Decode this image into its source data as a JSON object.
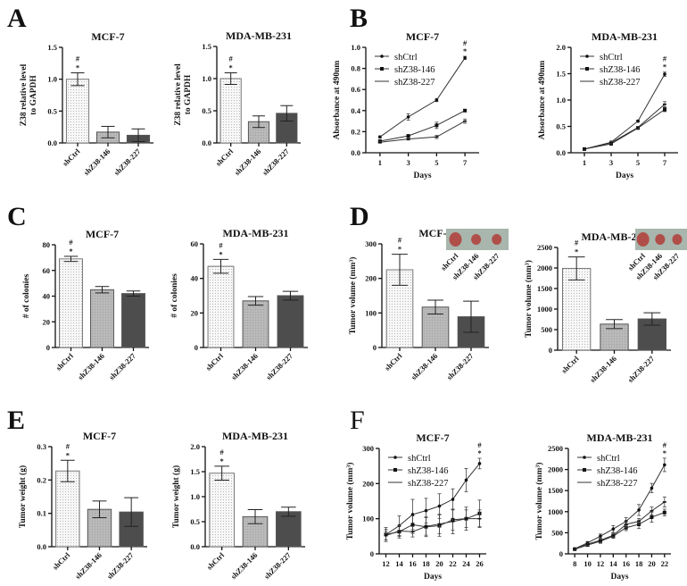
{
  "panel_letters": [
    "A",
    "B",
    "C",
    "D",
    "E",
    "F"
  ],
  "colors": {
    "shCtrl": "#f4f4f4",
    "shZ38-146": "#b9b9b9",
    "shZ38-227": "#4d4d4d",
    "axis": "#111111",
    "photo_bg": "#9fb0a6",
    "tumor": "#b4554e"
  },
  "chart_data": [
    {
      "panel": "A",
      "type": "bar",
      "title": "MCF-7",
      "ylabel": [
        "Z38 relative level",
        "to GAPDH"
      ],
      "categories": [
        "shCtrl",
        "shZ38-146",
        "shZ38-227"
      ],
      "values": [
        1.0,
        0.17,
        0.12
      ],
      "errors": [
        0.1,
        0.09,
        0.1
      ],
      "ylim": [
        0,
        1.5
      ],
      "yticks": [
        "0.0",
        "0.5",
        "1.0",
        "1.5"
      ],
      "yticks_values": [
        0,
        0.5,
        1.0,
        1.5
      ],
      "annotations": [
        "#",
        "*"
      ]
    },
    {
      "panel": "A",
      "type": "bar",
      "title": "MDA-MB-231",
      "ylabel": [
        "Z38 relative level",
        "to GAPDH"
      ],
      "categories": [
        "shCtrl",
        "shZ38-146",
        "shZ38-227"
      ],
      "values": [
        1.0,
        0.33,
        0.46
      ],
      "errors": [
        0.09,
        0.09,
        0.12
      ],
      "ylim": [
        0,
        1.5
      ],
      "yticks": [
        "0.0",
        "0.5",
        "1.0",
        "1.5"
      ],
      "yticks_values": [
        0,
        0.5,
        1.0,
        1.5
      ],
      "annotations": [
        "#",
        "*"
      ]
    },
    {
      "panel": "B",
      "type": "line",
      "title": "MCF-7",
      "ylabel": [
        "Absorbance at 490nm"
      ],
      "xlabel": "Days",
      "x": [
        1,
        3,
        5,
        7
      ],
      "xticks": [
        "1",
        "3",
        "5",
        "7"
      ],
      "ylim": [
        0,
        1.0
      ],
      "yticks": [
        "0.0",
        "0.2",
        "0.4",
        "0.6",
        "0.8",
        "1.0"
      ],
      "yticks_values": [
        0,
        0.2,
        0.4,
        0.6,
        0.8,
        1.0
      ],
      "legend": "top-left",
      "annotations": [
        "#",
        "*"
      ],
      "series": [
        {
          "name": "shCtrl",
          "values": [
            0.15,
            0.34,
            0.5,
            0.9
          ],
          "errors": [
            0.01,
            0.03,
            0.015,
            0.015
          ]
        },
        {
          "name": "shZ38-146",
          "values": [
            0.11,
            0.16,
            0.26,
            0.4
          ],
          "errors": [
            0.01,
            0.01,
            0.03,
            0.01
          ]
        },
        {
          "name": "shZ38-227",
          "values": [
            0.1,
            0.13,
            0.15,
            0.3
          ],
          "errors": [
            0.01,
            0.01,
            0.015,
            0.02
          ]
        }
      ]
    },
    {
      "panel": "B",
      "type": "line",
      "title": "MDA-MB-231",
      "ylabel": [
        "Absorbance at 490nm"
      ],
      "xlabel": "Days",
      "x": [
        1,
        3,
        5,
        7
      ],
      "xticks": [
        "1",
        "3",
        "5",
        "7"
      ],
      "ylim": [
        0,
        2.0
      ],
      "yticks": [
        "0.0",
        "0.5",
        "1.0",
        "1.5",
        "2.0"
      ],
      "yticks_values": [
        0,
        0.5,
        1.0,
        1.5,
        2.0
      ],
      "legend": "top-left",
      "annotations": [
        "#",
        "*"
      ],
      "series": [
        {
          "name": "shCtrl",
          "values": [
            0.07,
            0.2,
            0.6,
            1.49
          ],
          "errors": [
            0.01,
            0.02,
            0.02,
            0.04
          ]
        },
        {
          "name": "shZ38-146",
          "values": [
            0.07,
            0.17,
            0.47,
            0.82
          ],
          "errors": [
            0.01,
            0.02,
            0.02,
            0.04
          ]
        },
        {
          "name": "shZ38-227",
          "values": [
            0.07,
            0.19,
            0.48,
            0.92
          ],
          "errors": [
            0.01,
            0.02,
            0.02,
            0.05
          ]
        }
      ]
    },
    {
      "panel": "C",
      "type": "bar",
      "title": "MCF-7",
      "ylabel": [
        "# of colonies"
      ],
      "categories": [
        "shCtrl",
        "shZ38-146",
        "shZ38-227"
      ],
      "values": [
        69,
        45,
        42
      ],
      "errors": [
        2,
        2.5,
        2
      ],
      "ylim": [
        0,
        80
      ],
      "yticks": [
        "0",
        "20",
        "40",
        "60",
        "80"
      ],
      "yticks_values": [
        0,
        20,
        40,
        60,
        80
      ],
      "annotations": [
        "#",
        "*"
      ]
    },
    {
      "panel": "C",
      "type": "bar",
      "title": "MDA-MB-231",
      "ylabel": [
        "# of colonies"
      ],
      "categories": [
        "shCtrl",
        "shZ38-146",
        "shZ38-227"
      ],
      "values": [
        47,
        27,
        30
      ],
      "errors": [
        4,
        2.5,
        2.5
      ],
      "ylim": [
        0,
        60
      ],
      "yticks": [
        "0",
        "20",
        "40",
        "60"
      ],
      "yticks_values": [
        0,
        20,
        40,
        60
      ],
      "annotations": [
        "#",
        "*"
      ]
    },
    {
      "panel": "D",
      "type": "bar",
      "title": "MCF-7",
      "ylabel": [
        "Tumor volume (mm³)"
      ],
      "categories": [
        "shCtrl",
        "shZ38-146",
        "shZ38-227"
      ],
      "values": [
        225,
        117,
        89
      ],
      "errors": [
        45,
        20,
        45
      ],
      "ylim": [
        0,
        300
      ],
      "yticks": [
        "0",
        "100",
        "200",
        "300"
      ],
      "yticks_values": [
        0,
        100,
        200,
        300
      ],
      "annotations": [
        "#",
        "*"
      ],
      "inset_labels": [
        "shCtrl",
        "shZ38-146",
        "shZ38-227"
      ]
    },
    {
      "panel": "D",
      "type": "bar",
      "title": "MDA-MB-231",
      "ylabel": [
        "Tumor volume (mm³)"
      ],
      "categories": [
        "shCtrl",
        "shZ38-146",
        "shZ38-227"
      ],
      "values": [
        1990,
        635,
        760
      ],
      "errors": [
        280,
        110,
        150
      ],
      "ylim": [
        0,
        2500
      ],
      "yticks": [
        "0",
        "500",
        "1000",
        "1500",
        "2000",
        "2500"
      ],
      "yticks_values": [
        0,
        500,
        1000,
        1500,
        2000,
        2500
      ],
      "annotations": [
        "#",
        "*"
      ],
      "inset_labels": [
        "shCtrl",
        "shZ38-146",
        "shZ38-227"
      ]
    },
    {
      "panel": "E",
      "type": "bar",
      "title": "MCF-7",
      "ylabel": [
        "Tumor weight (g)"
      ],
      "categories": [
        "shCtrl",
        "shZ38-146",
        "shZ38-227"
      ],
      "values": [
        0.227,
        0.112,
        0.104
      ],
      "errors": [
        0.032,
        0.025,
        0.043
      ],
      "ylim": [
        0,
        0.3
      ],
      "yticks": [
        "0.0",
        "0.1",
        "0.2",
        "0.3"
      ],
      "yticks_values": [
        0,
        0.1,
        0.2,
        0.3
      ],
      "annotations": [
        "#",
        "*"
      ]
    },
    {
      "panel": "E",
      "type": "bar",
      "title": "MDA-MB-231",
      "ylabel": [
        "Tumor weight (g)"
      ],
      "categories": [
        "shCtrl",
        "shZ38-146",
        "shZ38-227"
      ],
      "values": [
        1.47,
        0.6,
        0.7
      ],
      "errors": [
        0.14,
        0.14,
        0.09
      ],
      "ylim": [
        0,
        2.0
      ],
      "yticks": [
        "0.0",
        "0.5",
        "1.0",
        "1.5",
        "2.0"
      ],
      "yticks_values": [
        0,
        0.5,
        1.0,
        1.5,
        2.0
      ],
      "annotations": [
        "#",
        "*"
      ]
    },
    {
      "panel": "F",
      "type": "line",
      "title": "MCF-7",
      "ylabel": [
        "Tumor volume (mm³)"
      ],
      "xlabel": "Days",
      "x": [
        12,
        14,
        16,
        18,
        20,
        22,
        24,
        26
      ],
      "xticks": [
        "12",
        "14",
        "16",
        "18",
        "20",
        "22",
        "24",
        "26"
      ],
      "ylim": [
        0,
        300
      ],
      "yticks": [
        "0",
        "100",
        "200",
        "300"
      ],
      "yticks_values": [
        0,
        100,
        200,
        300
      ],
      "legend": "top-left",
      "annotations": [
        "#",
        "*"
      ],
      "series": [
        {
          "name": "shCtrl",
          "values": [
            55,
            80,
            112,
            123,
            136,
            155,
            210,
            257
          ],
          "errors": [
            20,
            28,
            43,
            35,
            35,
            30,
            33,
            15
          ]
        },
        {
          "name": "shZ38-146",
          "values": [
            55,
            63,
            83,
            77,
            80,
            97,
            100,
            115
          ],
          "errors": [
            15,
            18,
            25,
            28,
            30,
            30,
            33,
            38
          ]
        },
        {
          "name": "shZ38-227",
          "values": [
            52,
            65,
            63,
            78,
            85,
            92,
            100,
            100
          ],
          "errors": [
            12,
            15,
            15,
            25,
            28,
            35,
            25,
            25
          ]
        }
      ]
    },
    {
      "panel": "F",
      "type": "line",
      "title": "MDA-MB-231",
      "ylabel": [
        "Tumor volume (mm³)"
      ],
      "xlabel": "Days",
      "x": [
        8,
        10,
        12,
        14,
        16,
        18,
        20,
        22
      ],
      "xticks": [
        "8",
        "10",
        "12",
        "14",
        "16",
        "18",
        "20",
        "22"
      ],
      "ylim": [
        0,
        2500
      ],
      "yticks": [
        "0",
        "500",
        "1000",
        "1500",
        "2000",
        "2500"
      ],
      "yticks_values": [
        0,
        500,
        1000,
        1500,
        2000,
        2500
      ],
      "legend": "top-left",
      "annotations": [
        "#",
        "*"
      ],
      "series": [
        {
          "name": "shCtrl",
          "values": [
            120,
            260,
            420,
            590,
            770,
            1040,
            1560,
            2110
          ],
          "errors": [
            20,
            30,
            50,
            80,
            90,
            130,
            110,
            160
          ]
        },
        {
          "name": "shZ38-146",
          "values": [
            110,
            210,
            300,
            420,
            620,
            700,
            870,
            980
          ],
          "errors": [
            20,
            30,
            50,
            50,
            70,
            100,
            120,
            80
          ]
        },
        {
          "name": "shZ38-227",
          "values": [
            115,
            230,
            320,
            440,
            700,
            770,
            1020,
            1230
          ],
          "errors": [
            20,
            30,
            50,
            50,
            80,
            70,
            90,
            120
          ]
        }
      ]
    }
  ]
}
